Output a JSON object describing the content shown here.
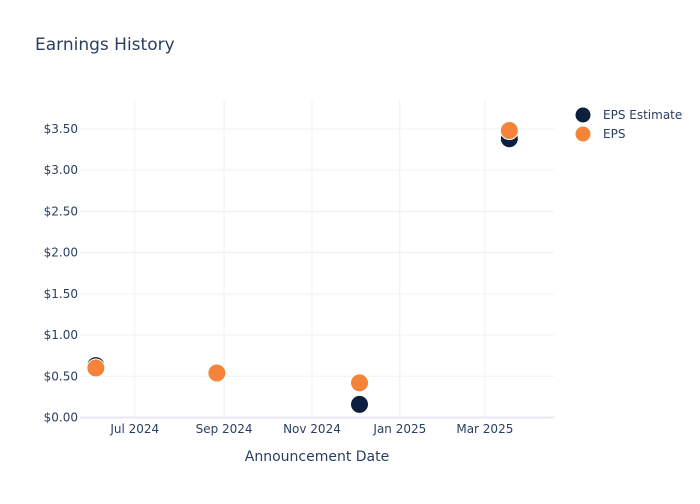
{
  "chart_data": {
    "type": "scatter",
    "title": "Earnings History",
    "xlabel": "Announcement Date",
    "ylabel": "",
    "x_axis": {
      "type": "date",
      "range": [
        "2024-05-24",
        "2025-04-18"
      ],
      "ticks": [
        {
          "date": "2024-07-01",
          "label": "Jul 2024"
        },
        {
          "date": "2024-09-01",
          "label": "Sep 2024"
        },
        {
          "date": "2024-11-01",
          "label": "Nov 2024"
        },
        {
          "date": "2025-01-01",
          "label": "Jan 2025"
        },
        {
          "date": "2025-03-01",
          "label": "Mar 2025"
        }
      ]
    },
    "y_axis": {
      "range": [
        -0.03,
        3.85
      ],
      "ticks": [
        {
          "value": 0,
          "label": "$0.00"
        },
        {
          "value": 0.5,
          "label": "$0.50"
        },
        {
          "value": 1,
          "label": "$1.00"
        },
        {
          "value": 1.5,
          "label": "$1.50"
        },
        {
          "value": 2,
          "label": "$2.00"
        },
        {
          "value": 2.5,
          "label": "$2.50"
        },
        {
          "value": 3,
          "label": "$3.00"
        },
        {
          "value": 3.5,
          "label": "$3.50"
        }
      ]
    },
    "grid": true,
    "legend_position": "top-right",
    "series": [
      {
        "name": "EPS Estimate",
        "color": "#0c1f3f",
        "points": [
          {
            "x": "2024-06-04",
            "y": 0.63
          },
          {
            "x": "2024-08-27",
            "y": 0.53
          },
          {
            "x": "2024-12-04",
            "y": 0.16
          },
          {
            "x": "2025-03-18",
            "y": 3.38
          }
        ]
      },
      {
        "name": "EPS",
        "color": "#f5833a",
        "points": [
          {
            "x": "2024-06-04",
            "y": 0.6
          },
          {
            "x": "2024-08-27",
            "y": 0.54
          },
          {
            "x": "2024-12-04",
            "y": 0.42
          },
          {
            "x": "2025-03-18",
            "y": 3.48
          }
        ]
      }
    ]
  }
}
